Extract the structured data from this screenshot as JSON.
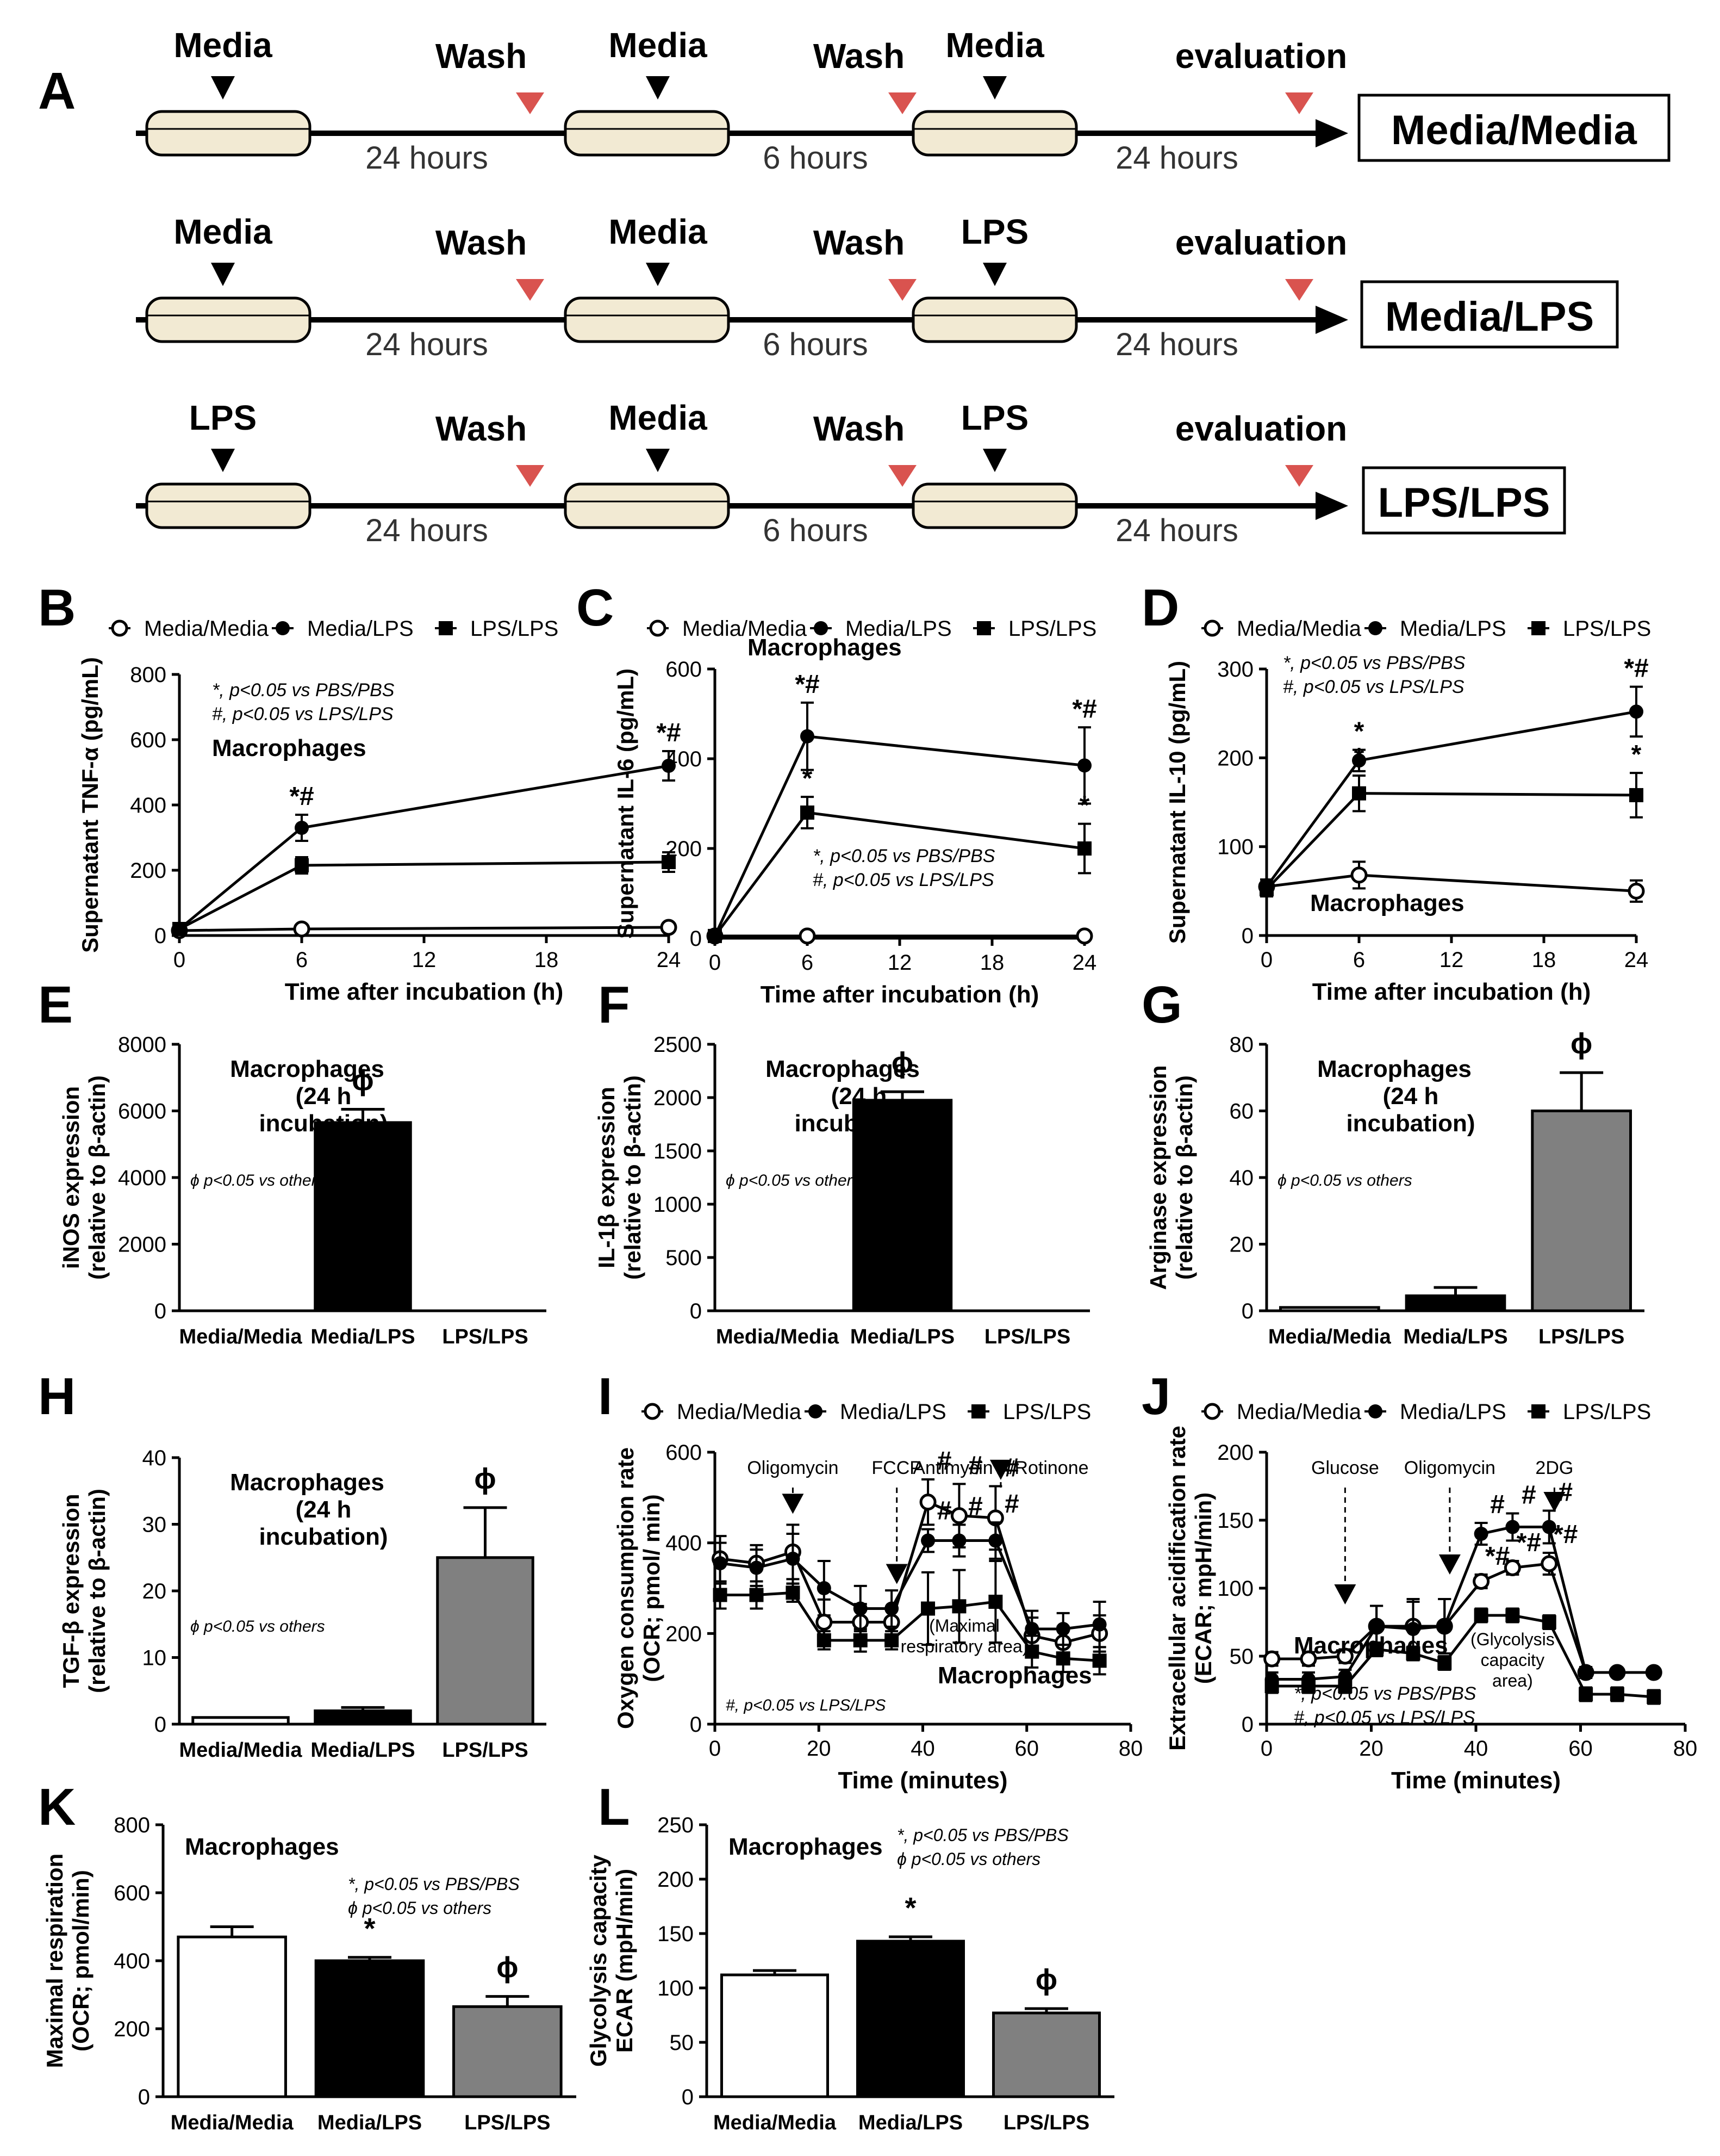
{
  "panel_letters": {
    "A": "A",
    "B": "B",
    "C": "C",
    "D": "D",
    "E": "E",
    "F": "F",
    "G": "G",
    "H": "H",
    "I": "I",
    "J": "J",
    "K": "K",
    "L": "L"
  },
  "protocol": {
    "rows": [
      {
        "steps": [
          "Media",
          "Media",
          "Media"
        ],
        "result": "Media/Media"
      },
      {
        "steps": [
          "Media",
          "Media",
          "LPS"
        ],
        "result": "Media/LPS"
      },
      {
        "steps": [
          "LPS",
          "Media",
          "LPS"
        ],
        "result": "LPS/LPS"
      }
    ],
    "wash": "Wash",
    "evaluation": "evaluation",
    "durations": [
      "24 hours",
      "6 hours",
      "24 hours"
    ]
  },
  "colors": {
    "black": "#000000",
    "grey": "#808080",
    "white": "#ffffff",
    "red": "#d9534f",
    "dish": "#f2ead3"
  },
  "legend": {
    "media_media": "Media/Media",
    "media_lps": "Media/LPS",
    "lps_lps": "LPS/LPS"
  },
  "common": {
    "macrophages": "Macrophages",
    "macro24": [
      "Macrophages",
      "(24 h",
      "incubation)"
    ],
    "phi_note": "ϕ p<0.05 vs others",
    "time_h": "Time after incubation (h)",
    "time_min": "Time (minutes)"
  },
  "chart_data": [
    {
      "id": "B",
      "type": "line",
      "x": [
        0,
        6,
        24
      ],
      "xticks": [
        0,
        6,
        12,
        18,
        24
      ],
      "ylim": [
        0,
        800
      ],
      "yticks": [
        0,
        200,
        400,
        600,
        800
      ],
      "ylabel": "Supernatant TNF-α (pg/mL)",
      "xlabel": "Time after incubation (h)",
      "notes": [
        "*, p<0.05 vs PBS/PBS",
        "#, p<0.05 vs LPS/LPS"
      ],
      "label": "Macrophages",
      "series": [
        {
          "name": "Media/Media",
          "marker": "open",
          "values": [
            15,
            20,
            25
          ],
          "err": [
            5,
            5,
            5
          ],
          "ann": [
            "",
            "",
            ""
          ]
        },
        {
          "name": "Media/LPS",
          "marker": "filled",
          "values": [
            20,
            330,
            520
          ],
          "err": [
            5,
            40,
            45
          ],
          "ann": [
            "",
            "*#",
            "*#"
          ]
        },
        {
          "name": "LPS/LPS",
          "marker": "square",
          "values": [
            20,
            215,
            225
          ],
          "err": [
            5,
            25,
            30
          ],
          "ann": [
            "",
            "",
            ""
          ]
        }
      ]
    },
    {
      "id": "C",
      "type": "line",
      "x": [
        0,
        6,
        24
      ],
      "xticks": [
        0,
        6,
        12,
        18,
        24
      ],
      "ylim": [
        0,
        600
      ],
      "yticks": [
        0,
        200,
        400,
        600
      ],
      "ylabel": "Supernatant IL-6 (pg/mL)",
      "xlabel": "Time after incubation (h)",
      "notes": [
        "*, p<0.05 vs PBS/PBS",
        "#, p<0.05 vs LPS/LPS"
      ],
      "label": "Macrophages",
      "series": [
        {
          "name": "Media/Media",
          "marker": "open",
          "values": [
            5,
            5,
            5
          ],
          "err": [
            3,
            3,
            3
          ],
          "ann": [
            "",
            "",
            ""
          ]
        },
        {
          "name": "Media/LPS",
          "marker": "filled",
          "values": [
            5,
            450,
            385
          ],
          "err": [
            3,
            75,
            85
          ],
          "ann": [
            "",
            "*#",
            "*#"
          ]
        },
        {
          "name": "LPS/LPS",
          "marker": "square",
          "values": [
            5,
            280,
            200
          ],
          "err": [
            3,
            35,
            55
          ],
          "ann": [
            "",
            "*",
            "*"
          ]
        }
      ]
    },
    {
      "id": "D",
      "type": "line",
      "x": [
        0,
        6,
        24
      ],
      "xticks": [
        0,
        6,
        12,
        18,
        24
      ],
      "ylim": [
        0,
        300
      ],
      "yticks": [
        0,
        100,
        200,
        300
      ],
      "ylabel": "Supernatant IL-10 (pg/mL)",
      "xlabel": "Time after incubation (h)",
      "notes": [
        "*, p<0.05 vs PBS/PBS",
        "#, p<0.05 vs LPS/LPS"
      ],
      "label": "Macrophages",
      "series": [
        {
          "name": "Media/Media",
          "marker": "open",
          "values": [
            55,
            68,
            50
          ],
          "err": [
            8,
            15,
            12
          ],
          "ann": [
            "",
            "",
            ""
          ]
        },
        {
          "name": "Media/LPS",
          "marker": "filled",
          "values": [
            55,
            197,
            252
          ],
          "err": [
            8,
            12,
            28
          ],
          "ann": [
            "",
            "*",
            "*#"
          ]
        },
        {
          "name": "LPS/LPS",
          "marker": "square",
          "values": [
            52,
            160,
            158
          ],
          "err": [
            8,
            20,
            25
          ],
          "ann": [
            "",
            "*",
            "*"
          ]
        }
      ]
    },
    {
      "id": "E",
      "type": "bar",
      "categories": [
        "Media/Media",
        "Media/LPS",
        "LPS/LPS"
      ],
      "values": [
        0,
        5650,
        0
      ],
      "err": [
        0,
        400,
        0
      ],
      "ylim": [
        0,
        8000
      ],
      "yticks": [
        0,
        2000,
        4000,
        6000,
        8000
      ],
      "ylabel": [
        "iNOS expression",
        "(relative to β-actin)"
      ],
      "ann": [
        "",
        "ϕ",
        ""
      ],
      "note": "ϕ p<0.05 vs others"
    },
    {
      "id": "F",
      "type": "bar",
      "categories": [
        "Media/Media",
        "Media/LPS",
        "LPS/LPS"
      ],
      "values": [
        0,
        1975,
        0
      ],
      "err": [
        0,
        80,
        0
      ],
      "ylim": [
        0,
        2500
      ],
      "yticks": [
        0,
        500,
        1000,
        1500,
        2000,
        2500
      ],
      "ylabel": [
        "IL-1β expression",
        "(relative to β-actin)"
      ],
      "ann": [
        "",
        "ϕ",
        ""
      ],
      "note": "ϕ p<0.05 vs others"
    },
    {
      "id": "G",
      "type": "bar",
      "categories": [
        "Media/Media",
        "Media/LPS",
        "LPS/LPS"
      ],
      "values": [
        1,
        4.5,
        60
      ],
      "err": [
        0,
        2.5,
        11.5
      ],
      "ylim": [
        0,
        80
      ],
      "yticks": [
        0,
        20,
        40,
        60,
        80
      ],
      "ylabel": [
        "Arginase expression",
        "(relative to β-actin)"
      ],
      "ann": [
        "",
        "",
        "ϕ"
      ],
      "note": "ϕ p<0.05 vs others"
    },
    {
      "id": "H",
      "type": "bar",
      "categories": [
        "Media/Media",
        "Media/LPS",
        "LPS/LPS"
      ],
      "values": [
        1,
        2,
        25
      ],
      "err": [
        0,
        0.5,
        7.5
      ],
      "ylim": [
        0,
        40
      ],
      "yticks": [
        0,
        10,
        20,
        30,
        40
      ],
      "ylabel": [
        "TGF-β expression",
        "(relative to β-actin)"
      ],
      "ann": [
        "",
        "",
        "ϕ"
      ],
      "note": "ϕ p<0.05 vs others"
    },
    {
      "id": "I",
      "type": "line",
      "x": [
        1,
        8,
        15,
        21,
        28,
        34,
        41,
        47,
        54,
        61,
        67,
        74
      ],
      "xticks": [
        0,
        20,
        40,
        60,
        80
      ],
      "ylim": [
        0,
        600
      ],
      "yticks": [
        0,
        200,
        400,
        600
      ],
      "ylabel": [
        "Oxygen consumption rate",
        "(OCR; pmol/ min)"
      ],
      "xlabel": "Time (minutes)",
      "arrows": [
        {
          "label": "Oligomycin",
          "x": 15
        },
        {
          "label": "FCCP",
          "x": 35
        },
        {
          "label": "Antimycin A/Rotinone",
          "x": 55
        }
      ],
      "region": "(Maximal respiratory area)",
      "note": "#, p<0.05 vs LPS/LPS",
      "label": "Macrophages",
      "series": [
        {
          "name": "Media/Media",
          "marker": "open",
          "values": [
            365,
            355,
            380,
            225,
            225,
            225,
            490,
            460,
            455,
            195,
            180,
            200
          ],
          "err": [
            50,
            40,
            60,
            50,
            40,
            30,
            50,
            70,
            70,
            40,
            35,
            40
          ],
          "ann": [
            "",
            "",
            "",
            "",
            "",
            "",
            "#",
            "#",
            "#",
            "",
            "",
            ""
          ]
        },
        {
          "name": "Media/LPS",
          "marker": "filled",
          "values": [
            355,
            345,
            365,
            300,
            255,
            255,
            405,
            405,
            405,
            210,
            210,
            220
          ],
          "err": [
            45,
            40,
            55,
            60,
            50,
            40,
            25,
            35,
            40,
            40,
            35,
            50
          ],
          "ann": [
            "",
            "",
            "",
            "",
            "",
            "",
            "#",
            "#",
            "#",
            "",
            "",
            ""
          ]
        },
        {
          "name": "LPS/LPS",
          "marker": "square",
          "values": [
            285,
            285,
            290,
            185,
            185,
            185,
            255,
            260,
            270,
            160,
            145,
            140
          ],
          "err": [
            30,
            30,
            20,
            20,
            25,
            20,
            80,
            80,
            90,
            35,
            30,
            30
          ],
          "ann": [
            "",
            "",
            "",
            "",
            "",
            "",
            "",
            "",
            "",
            "",
            "",
            ""
          ]
        }
      ]
    },
    {
      "id": "J",
      "type": "line",
      "x": [
        1,
        8,
        15,
        21,
        28,
        34,
        41,
        47,
        54,
        61,
        67,
        74
      ],
      "xticks": [
        0,
        20,
        40,
        60,
        80
      ],
      "ylim": [
        0,
        200
      ],
      "yticks": [
        0,
        50,
        100,
        150,
        200
      ],
      "ylabel": [
        "Extracellular acidification rate",
        "(ECAR; mpH/min)"
      ],
      "xlabel": "Time (minutes)",
      "arrows": [
        {
          "label": "Glucose",
          "x": 15
        },
        {
          "label": "Oligomycin",
          "x": 35
        },
        {
          "label": "2DG",
          "x": 55
        }
      ],
      "region": "(Glycolysis capacity area)",
      "notes": [
        "*, p<0.05 vs PBS/PBS",
        "#, p<0.05 vs LPS/LPS"
      ],
      "label": "Macrophages",
      "series": [
        {
          "name": "Media/Media",
          "marker": "open",
          "values": [
            48,
            48,
            50,
            72,
            72,
            72,
            105,
            115,
            118,
            38,
            38,
            38
          ],
          "err": [
            5,
            5,
            5,
            15,
            20,
            20,
            5,
            5,
            8,
            4,
            3,
            3
          ],
          "ann": [
            "",
            "",
            "",
            "",
            "",
            "",
            "*#",
            "*#",
            "*#",
            "",
            "",
            ""
          ]
        },
        {
          "name": "Media/LPS",
          "marker": "filled",
          "values": [
            33,
            33,
            35,
            72,
            70,
            72,
            140,
            145,
            145,
            38,
            38,
            38
          ],
          "err": [
            5,
            5,
            5,
            15,
            20,
            20,
            8,
            10,
            12,
            4,
            3,
            3
          ],
          "ann": [
            "",
            "",
            "",
            "",
            "",
            "",
            "#",
            "#",
            "#",
            "",
            "",
            ""
          ]
        },
        {
          "name": "LPS/LPS",
          "marker": "square",
          "values": [
            28,
            28,
            28,
            55,
            52,
            45,
            80,
            80,
            75,
            22,
            22,
            20
          ],
          "err": [
            5,
            5,
            5,
            5,
            5,
            5,
            5,
            5,
            5,
            5,
            5,
            5
          ],
          "ann": [
            "",
            "",
            "",
            "",
            "",
            "",
            "",
            "",
            "",
            "",
            "",
            ""
          ]
        }
      ]
    },
    {
      "id": "K",
      "type": "bar",
      "categories": [
        "Media/Media",
        "Media/LPS",
        "LPS/LPS"
      ],
      "values": [
        470,
        400,
        265
      ],
      "err": [
        30,
        10,
        30
      ],
      "ylim": [
        0,
        800
      ],
      "yticks": [
        0,
        200,
        400,
        600,
        800
      ],
      "ylabel": [
        "Maximal respiration",
        "(OCR; pmol/min)"
      ],
      "ann": [
        "",
        "*",
        "ϕ"
      ],
      "notes": [
        "*, p<0.05 vs PBS/PBS",
        "ϕ p<0.05 vs others"
      ],
      "label": "Macrophages"
    },
    {
      "id": "L",
      "type": "bar",
      "categories": [
        "Media/Media",
        "Media/LPS",
        "LPS/LPS"
      ],
      "values": [
        112,
        143,
        77
      ],
      "err": [
        4,
        4,
        4
      ],
      "ylim": [
        0,
        250
      ],
      "yticks": [
        0,
        50,
        100,
        150,
        200,
        250
      ],
      "ylabel": [
        "Glycolysis capacity",
        "ECAR (mpH/min)"
      ],
      "ann": [
        "",
        "*",
        "ϕ"
      ],
      "notes": [
        "*, p<0.05 vs PBS/PBS",
        "ϕ p<0.05 vs others"
      ],
      "label": "Macrophages"
    }
  ]
}
